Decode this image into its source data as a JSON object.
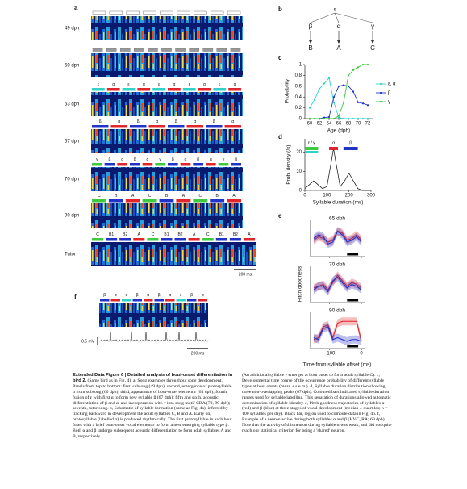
{
  "panel_a": {
    "label": "a",
    "syllable_colors": {
      "ε": "#2fd3c8",
      "α": "#e0262a",
      "β": "#2233c8",
      "γ": "#3ec93e",
      "A": "#e0262a",
      "B": "#2233c8",
      "B1": "#2233c8",
      "B2": "#2233c8",
      "C": "#3ec93e"
    },
    "rows": [
      {
        "age": "49 dph",
        "syllables": []
      },
      {
        "age": "60 dph",
        "syllables": []
      },
      {
        "age": "63 dph",
        "syllables": [
          "ε",
          "α",
          "ε",
          "α",
          "ε",
          "α",
          "ε",
          "α",
          "ε",
          "α"
        ]
      },
      {
        "age": "67 dph",
        "syllables": [
          "β",
          "α",
          "β",
          "α",
          "β",
          "α",
          "β",
          "α"
        ]
      },
      {
        "age": "70 dph",
        "syllables": [
          "γ",
          "β",
          "α",
          "β",
          "α",
          "γ",
          "β",
          "α",
          "β",
          "α",
          "γ",
          "β"
        ]
      },
      {
        "age": "90 dph",
        "syllables": [
          "C",
          "B",
          "A",
          "C",
          "B",
          "A",
          "C",
          "B",
          "A"
        ]
      },
      {
        "age": "Tutor",
        "syllables": [
          "C",
          "B1",
          "B2",
          "A",
          "C",
          "B1",
          "B2",
          "A",
          "C",
          "B1",
          "B2",
          "A"
        ]
      }
    ],
    "scale_bar": "200 ms"
  },
  "panel_b": {
    "label": "b",
    "root": "ε",
    "branches": [
      {
        "greek": "β",
        "adult": "B",
        "color": "#2233c8"
      },
      {
        "greek": "α",
        "adult": "A",
        "color": "#e0262a"
      },
      {
        "greek": "γ",
        "adult": "C",
        "color": "#3ec93e"
      }
    ]
  },
  "panel_c": {
    "label": "c",
    "type": "line",
    "x_label": "Age (dph)",
    "y_label": "Probability",
    "x": [
      60,
      61,
      62,
      63,
      64,
      65,
      66,
      67,
      68,
      69,
      70,
      71,
      72
    ],
    "xlim": [
      59,
      73
    ],
    "xticks": [
      60,
      62,
      64,
      66,
      68,
      70,
      72
    ],
    "ylim": [
      0,
      1
    ],
    "yticks": [
      0,
      0.2,
      0.4,
      0.6,
      0.8,
      1
    ],
    "series": [
      {
        "name": "ε, α",
        "color": "#2fd3c8",
        "values": [
          0.2,
          0.35,
          0.55,
          0.65,
          0.75,
          0.3,
          0.02,
          0,
          0,
          0,
          0,
          0,
          0
        ]
      },
      {
        "name": "β",
        "color": "#2233c8",
        "values": [
          0,
          0,
          0,
          0.02,
          0.03,
          0.4,
          0.6,
          0.62,
          0.6,
          0.5,
          0.3,
          0.28,
          0.25
        ]
      },
      {
        "name": "γ",
        "color": "#3ec93e",
        "values": [
          0,
          0,
          0,
          0,
          0,
          0,
          0.05,
          0.3,
          0.8,
          0.9,
          0.95,
          1,
          1
        ]
      }
    ]
  },
  "panel_d": {
    "label": "d",
    "type": "line",
    "x_label": "Syllable duration (ms)",
    "y_label": "Prob. density (/s)",
    "x": [
      0,
      20,
      40,
      60,
      80,
      100,
      120,
      130,
      140,
      160,
      180,
      200,
      220,
      240,
      260,
      280,
      300
    ],
    "values": [
      1,
      3,
      5,
      3,
      1,
      2,
      15,
      22,
      15,
      2,
      5,
      9,
      5,
      1,
      0,
      0,
      0
    ],
    "color": "#222222",
    "xlim": [
      0,
      300
    ],
    "xticks": [
      0,
      100,
      200,
      300
    ],
    "ylim": [
      0,
      27
    ],
    "yticks": [
      0,
      10,
      20
    ],
    "ranges": [
      {
        "name": "ε / γ",
        "range": [
          0,
          60
        ],
        "color": "#3ec93e"
      },
      {
        "name": "α",
        "range": [
          110,
          150
        ],
        "color": "#e0262a"
      },
      {
        "name": "β",
        "range": [
          175,
          240
        ],
        "color": "#2233c8"
      }
    ]
  },
  "panel_e": {
    "label": "e",
    "type": "line",
    "x_label": "Time from syllable offset (ms)",
    "y_label": "Pitch goodness",
    "xlim": [
      -160,
      10
    ],
    "xticks": [
      {
        "value": -100,
        "label": "−100"
      },
      0
    ],
    "ylim": [
      0,
      1
    ],
    "plots": [
      {
        "title": "65 dph",
        "x": [
          -150,
          -135,
          -120,
          -105,
          -90,
          -75,
          -60,
          -45,
          -30,
          -15,
          0
        ],
        "series": [
          {
            "name": "α",
            "color": "#e0262a",
            "values": [
              0.45,
              0.55,
              0.5,
              0.4,
              0.45,
              0.7,
              0.65,
              0.45,
              0.5,
              0.6,
              0.45
            ]
          },
          {
            "name": "β",
            "color": "#2233c8",
            "values": [
              0.5,
              0.6,
              0.55,
              0.35,
              0.4,
              0.7,
              0.6,
              0.4,
              0.45,
              0.55,
              0.4
            ]
          }
        ]
      },
      {
        "title": "70 dph",
        "x": [
          -150,
          -135,
          -120,
          -105,
          -90,
          -75,
          -60,
          -45,
          -30,
          -15,
          0
        ],
        "series": [
          {
            "name": "α",
            "color": "#e0262a",
            "values": [
              0.4,
              0.45,
              0.5,
              0.35,
              0.55,
              0.75,
              0.6,
              0.45,
              0.55,
              0.5,
              0.4
            ]
          },
          {
            "name": "β",
            "color": "#2233c8",
            "values": [
              0.35,
              0.45,
              0.45,
              0.3,
              0.6,
              0.7,
              0.55,
              0.4,
              0.5,
              0.45,
              0.35
            ]
          }
        ]
      },
      {
        "title": "90 dph",
        "x": [
          -150,
          -135,
          -120,
          -105,
          -90,
          -75,
          -60,
          -45,
          -30,
          -15,
          0
        ],
        "series": [
          {
            "name": "α",
            "color": "#e0262a",
            "values": [
              0.25,
              0.3,
              0.6,
              0.65,
              0.3,
              0.7,
              0.75,
              0.75,
              0.75,
              0.75,
              0.2
            ]
          },
          {
            "name": "β",
            "color": "#2233c8",
            "values": [
              0.3,
              0.25,
              0.55,
              0.6,
              0.25,
              0.3,
              0.25,
              0.2,
              0.25,
              0.25,
              0.2
            ]
          }
        ]
      }
    ],
    "region": [
      -45,
      -10
    ]
  },
  "panel_f": {
    "label": "f",
    "syllables": [
      "β",
      "α",
      "ε",
      "β",
      "α",
      "β",
      "α",
      "ε",
      "β",
      "α"
    ],
    "voltage_bar": "0.5 mV",
    "time_bar": "200 ms"
  },
  "caption": {
    "title": "Extended Data Figure 6 | Detailed analysis of bout-onset differentiation in bird 2.",
    "left": " (Same bird as in Fig. 4). a, Song examples throughout song development. Panels from top to bottom: first, subsong (49 dph); second, emergence of protosyllable α from subsong (60 dph); third, appearance of bout-onset element ε (63 dph); fourth, fusion of ε with first α to form new syllable β (67 dph); fifth and sixth, acoustic differentiation of β and α, and incorporation with γ into song motif CBA (70, 90 dph); seventh, tutor song. b, Schematic of syllable formation (same as Fig. 4a), inferred by tracking backward in development the adult syllables C, B and A. Early on, protosyllable (labelled α) is produced rhythmically. The first protosyllable in each bout fuses with a brief bout-onset vocal element ε to form a new emerging syllable type β. Both α and β undergo subsequent acoustic differentiation to form adult syllables A and B, respectively.",
    "right": "(An additional syllable γ emerges at bout onset to form adult syllable C). c, Developmental time course of the occurrence probability of different syllable types at bout onsets (mean ± s.e.m.). d, Syllable duration distribution showing three non-overlapping peaks (67 dph). Coloured bars indicated syllable duration ranges used for syllable labelling. This separation of durations allowed automatic determination of syllable identity. e, Pitch goodness trajectories of syllables α (red) and β (blue) at three stages of vocal development (median ± quartiles; n = 100 syllables per day). Black bar, region used to compute data in Fig. 4b. f, Example of a neuron active during both syllables α and β (HVC_RA; 69 dph). Note that the activity of this neuron during syllable α was weak, and did not quite reach our statistical criterion for being a 'shared' neuron."
  }
}
